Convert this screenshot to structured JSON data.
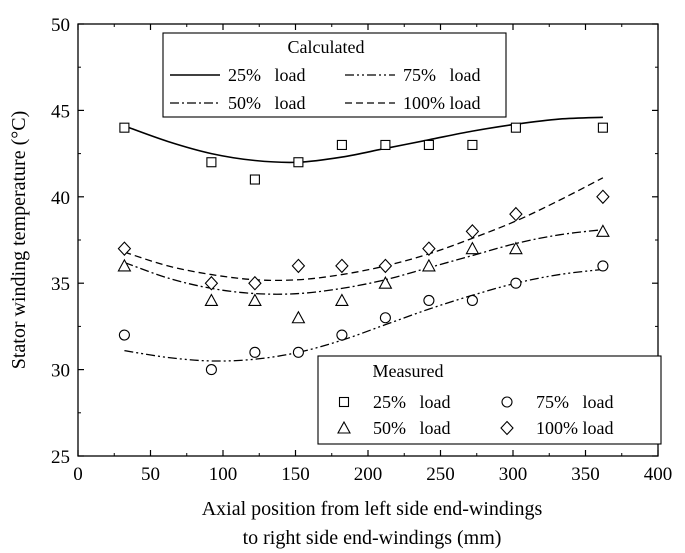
{
  "chart_data": {
    "type": "line",
    "xlabel": [
      "Axial position from left side end-windings",
      "to right side end-windings (mm)"
    ],
    "ylabel": "Stator winding temperature (°C)",
    "xlim": [
      0,
      400
    ],
    "ylim": [
      25,
      50
    ],
    "xticks": [
      0,
      50,
      100,
      150,
      200,
      250,
      300,
      350,
      400
    ],
    "yticks": [
      25,
      30,
      35,
      40,
      45,
      50
    ],
    "grid": false,
    "calculated_legend": {
      "title": "Calculated",
      "placement": "top-left",
      "entries": [
        "25%   load",
        "50%   load",
        "75%   load",
        "100% load"
      ]
    },
    "measured_legend": {
      "title": "Measured",
      "placement": "bottom-right",
      "entries": [
        "25%   load",
        "50%   load",
        "75%   load",
        "100% load"
      ]
    },
    "calculated": [
      {
        "load": "25%",
        "dash": "solid",
        "x": [
          32,
          62,
          92,
          122,
          152,
          182,
          212,
          242,
          272,
          302,
          332,
          362
        ],
        "y": [
          44.1,
          43.2,
          42.5,
          42.1,
          42.0,
          42.3,
          42.8,
          43.3,
          43.8,
          44.2,
          44.5,
          44.6
        ]
      },
      {
        "load": "50%",
        "dash": "dashdot",
        "x": [
          32,
          62,
          92,
          122,
          152,
          182,
          212,
          242,
          272,
          302,
          332,
          362
        ],
        "y": [
          36.2,
          35.3,
          34.7,
          34.4,
          34.4,
          34.7,
          35.2,
          35.9,
          36.6,
          37.3,
          37.8,
          38.1
        ]
      },
      {
        "load": "75%",
        "dash": "dashdotdot",
        "x": [
          32,
          62,
          92,
          122,
          152,
          182,
          212,
          242,
          272,
          302,
          332,
          362
        ],
        "y": [
          31.1,
          30.7,
          30.5,
          30.6,
          31.0,
          31.7,
          32.6,
          33.5,
          34.3,
          35.0,
          35.5,
          35.8
        ]
      },
      {
        "load": "100%",
        "dash": "dashed",
        "x": [
          32,
          62,
          92,
          122,
          152,
          182,
          212,
          242,
          272,
          302,
          332,
          362
        ],
        "y": [
          36.8,
          36.0,
          35.5,
          35.2,
          35.2,
          35.5,
          36.0,
          36.7,
          37.6,
          38.6,
          39.8,
          41.1
        ]
      }
    ],
    "measured": [
      {
        "load": "25%",
        "marker": "square",
        "x": [
          32,
          92,
          122,
          152,
          182,
          212,
          242,
          272,
          302,
          362
        ],
        "y": [
          44,
          42,
          41,
          42,
          43,
          43,
          43,
          43,
          44,
          44
        ]
      },
      {
        "load": "50%",
        "marker": "triangle",
        "x": [
          32,
          92,
          122,
          152,
          182,
          212,
          242,
          272,
          302,
          362
        ],
        "y": [
          36,
          34,
          34,
          33,
          34,
          35,
          36,
          37,
          37,
          38
        ]
      },
      {
        "load": "75%",
        "marker": "circle",
        "x": [
          32,
          92,
          122,
          152,
          182,
          212,
          242,
          272,
          302,
          362
        ],
        "y": [
          32,
          30,
          31,
          31,
          32,
          33,
          34,
          34,
          35,
          36
        ]
      },
      {
        "load": "100%",
        "marker": "diamond",
        "x": [
          32,
          92,
          122,
          152,
          182,
          212,
          242,
          272,
          302,
          362
        ],
        "y": [
          37,
          35,
          35,
          36,
          36,
          36,
          37,
          38,
          39,
          40
        ]
      }
    ]
  }
}
